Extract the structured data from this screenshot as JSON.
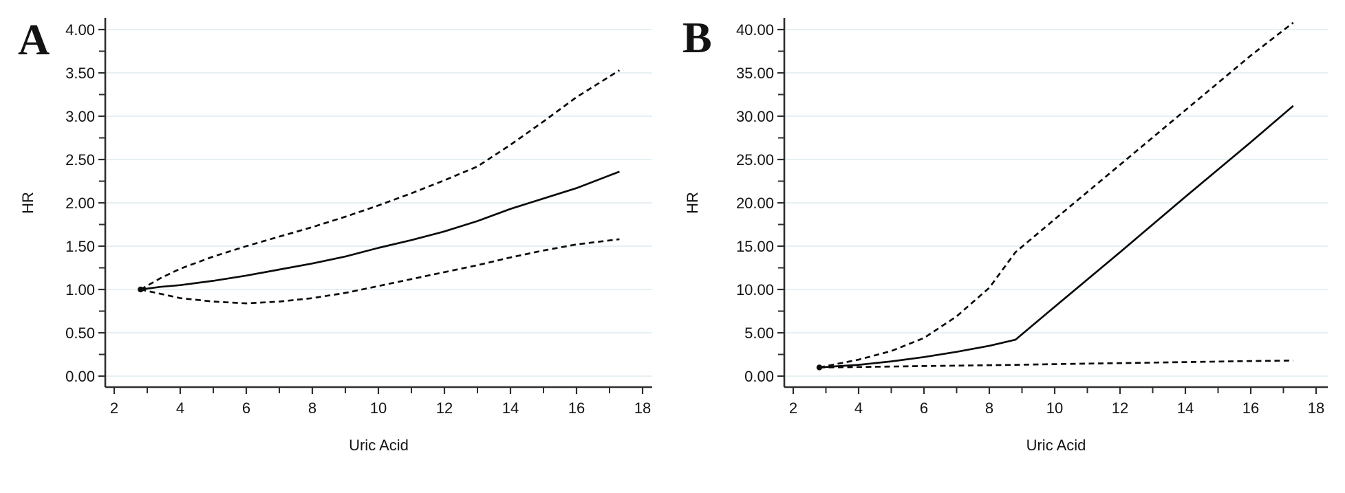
{
  "page": {
    "background": "#ffffff"
  },
  "styles": {
    "curve_color": "#0b0b0b",
    "axis_color": "#2e2e2e",
    "grid_color": "#deebf0",
    "text_color": "#131313"
  },
  "chart_data": [
    {
      "type": "line",
      "panel_label": "A",
      "xlabel": "Uric Acid",
      "ylabel": "HR",
      "xlim": [
        1.73,
        18.35
      ],
      "ylim": [
        0,
        4
      ],
      "grid": "horizontal",
      "legend": "none",
      "x_ticks": [
        {
          "v": 2,
          "label": "2"
        },
        {
          "v": 4,
          "label": "4"
        },
        {
          "v": 6,
          "label": "6"
        },
        {
          "v": 8,
          "label": "8"
        },
        {
          "v": 10,
          "label": "10"
        },
        {
          "v": 12,
          "label": "12"
        },
        {
          "v": 14,
          "label": "14"
        },
        {
          "v": 16,
          "label": "16"
        },
        {
          "v": 18,
          "label": "18"
        }
      ],
      "x_minor_ticks": [
        3,
        5,
        7,
        9,
        11,
        13,
        15,
        17
      ],
      "y_ticks": [
        {
          "v": 0,
          "label": "0.00"
        },
        {
          "v": 0.5,
          "label": "0.50"
        },
        {
          "v": 1,
          "label": "1.00"
        },
        {
          "v": 1.5,
          "label": "1.50"
        },
        {
          "v": 2,
          "label": "2.00"
        },
        {
          "v": 2.5,
          "label": "2.50"
        },
        {
          "v": 3,
          "label": "3.00"
        },
        {
          "v": 3.5,
          "label": "3.50"
        },
        {
          "v": 4,
          "label": "4.00"
        }
      ],
      "y_minor_ticks": [
        0.25,
        0.75,
        1.25,
        1.75,
        2.25,
        2.75,
        3.25,
        3.75
      ],
      "start_marker": {
        "x": 2.8,
        "y": 1.0
      },
      "series": [
        {
          "name": "hr-estimate",
          "style": "solid",
          "x": [
            2.8,
            3.4,
            4,
            5,
            6,
            7,
            8,
            9,
            10,
            11,
            12,
            13,
            14,
            15,
            16,
            17.3
          ],
          "y": [
            1.0,
            1.03,
            1.05,
            1.1,
            1.16,
            1.23,
            1.3,
            1.38,
            1.48,
            1.57,
            1.67,
            1.79,
            1.93,
            2.05,
            2.17,
            2.36
          ]
        },
        {
          "name": "ci-upper",
          "style": "dashed",
          "x": [
            2.8,
            3.4,
            4,
            5,
            6,
            7,
            8,
            9,
            10,
            11,
            12,
            13,
            14,
            15,
            16,
            17.3
          ],
          "y": [
            1.0,
            1.13,
            1.24,
            1.38,
            1.5,
            1.61,
            1.72,
            1.84,
            1.97,
            2.11,
            2.26,
            2.42,
            2.67,
            2.94,
            3.22,
            3.53
          ]
        },
        {
          "name": "ci-lower",
          "style": "dashed",
          "x": [
            2.8,
            3.4,
            4,
            5,
            6,
            7,
            8,
            9,
            10,
            11,
            12,
            13,
            14,
            15,
            16,
            17.3
          ],
          "y": [
            1.0,
            0.95,
            0.9,
            0.86,
            0.84,
            0.86,
            0.9,
            0.96,
            1.04,
            1.12,
            1.2,
            1.28,
            1.37,
            1.45,
            1.52,
            1.58
          ]
        }
      ]
    },
    {
      "type": "line",
      "panel_label": "B",
      "xlabel": "Uric Acid",
      "ylabel": "HR",
      "xlim": [
        1.73,
        18.35
      ],
      "ylim": [
        0,
        40
      ],
      "grid": "horizontal",
      "legend": "none",
      "x_ticks": [
        {
          "v": 2,
          "label": "2"
        },
        {
          "v": 4,
          "label": "4"
        },
        {
          "v": 6,
          "label": "6"
        },
        {
          "v": 8,
          "label": "8"
        },
        {
          "v": 10,
          "label": "10"
        },
        {
          "v": 12,
          "label": "12"
        },
        {
          "v": 14,
          "label": "14"
        },
        {
          "v": 16,
          "label": "16"
        },
        {
          "v": 18,
          "label": "18"
        }
      ],
      "x_minor_ticks": [
        3,
        5,
        7,
        9,
        11,
        13,
        15,
        17
      ],
      "y_ticks": [
        {
          "v": 0,
          "label": "0.00"
        },
        {
          "v": 5,
          "label": "5.00"
        },
        {
          "v": 10,
          "label": "10.00"
        },
        {
          "v": 15,
          "label": "15.00"
        },
        {
          "v": 20,
          "label": "20.00"
        },
        {
          "v": 25,
          "label": "25.00"
        },
        {
          "v": 30,
          "label": "30.00"
        },
        {
          "v": 35,
          "label": "35.00"
        },
        {
          "v": 40,
          "label": "40.00"
        }
      ],
      "y_minor_ticks": [
        2.5,
        7.5,
        12.5,
        17.5,
        22.5,
        27.5,
        32.5,
        37.5
      ],
      "start_marker": {
        "x": 2.8,
        "y": 1.0
      },
      "series": [
        {
          "name": "hr-estimate",
          "style": "solid",
          "x": [
            2.8,
            3.4,
            4,
            5,
            6,
            7,
            8,
            8.8,
            10,
            12,
            14,
            16,
            17.3
          ],
          "y": [
            1.0,
            1.15,
            1.3,
            1.7,
            2.2,
            2.8,
            3.5,
            4.2,
            8.0,
            14.3,
            20.7,
            27.0,
            31.2
          ]
        },
        {
          "name": "ci-upper",
          "style": "dashed",
          "x": [
            2.8,
            3.4,
            4,
            5,
            6,
            7,
            8,
            8.8,
            10,
            12,
            14,
            16,
            17.3
          ],
          "y": [
            1.0,
            1.45,
            1.9,
            2.9,
            4.4,
            6.9,
            10.2,
            14.3,
            18.1,
            24.4,
            30.7,
            37.0,
            40.8
          ]
        },
        {
          "name": "ci-lower",
          "style": "dashed",
          "x": [
            2.8,
            3.4,
            4,
            5,
            6,
            7,
            8,
            8.8,
            10,
            12,
            14,
            16,
            17.3
          ],
          "y": [
            1.0,
            1.02,
            1.05,
            1.1,
            1.16,
            1.21,
            1.26,
            1.3,
            1.38,
            1.5,
            1.62,
            1.74,
            1.8
          ]
        }
      ]
    }
  ]
}
